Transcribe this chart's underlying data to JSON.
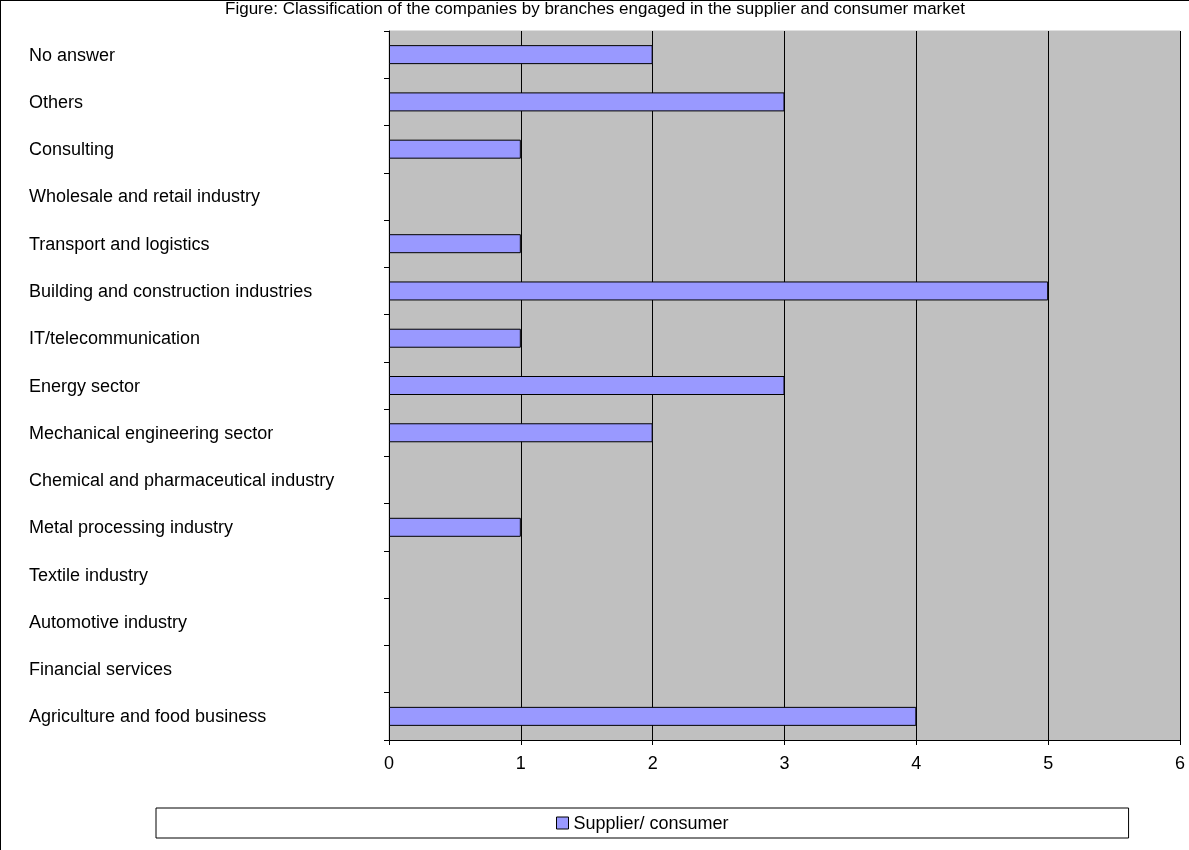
{
  "chart_data": {
    "type": "bar",
    "orientation": "horizontal",
    "title": "Figure: Classification of the companies by branches engaged in the supplier and consumer market",
    "categories": [
      "No answer",
      "Others",
      "Consulting",
      "Wholesale and retail industry",
      "Transport and logistics",
      "Building and construction industries",
      "IT/telecommunication",
      "Energy sector",
      "Mechanical engineering sector",
      "Chemical and pharmaceutical industry",
      "Metal processing industry",
      "Textile industry",
      "Automotive industry",
      "Financial services",
      "Agriculture and food business"
    ],
    "series": [
      {
        "name": "Supplier/ consumer",
        "color": "#9999ff",
        "values": [
          2,
          3,
          1,
          0,
          1,
          5,
          1,
          3,
          2,
          0,
          1,
          0,
          0,
          0,
          4
        ]
      }
    ],
    "xlim": [
      0,
      6
    ],
    "xticks": [
      0,
      1,
      2,
      3,
      4,
      5,
      6
    ],
    "grid": "x",
    "legend": "bottom"
  }
}
